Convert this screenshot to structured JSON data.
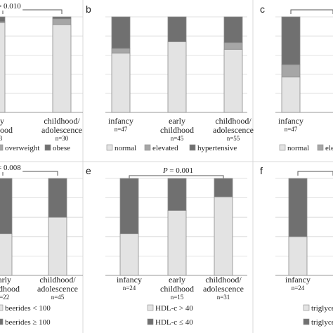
{
  "colors": {
    "light": "#e3e3e3",
    "mid": "#a6a6a6",
    "dark": "#707070",
    "grid": "#d8d8d8",
    "axis": "#999999",
    "bar_stroke": "#8a8a8a",
    "text": "#222222"
  },
  "chart_data": [
    {
      "type": "bar",
      "panel": "a",
      "stacked": true,
      "panel_letter": "",
      "p_value": "= 0.010",
      "categories": [
        {
          "line1": "early",
          "line2": "childhood",
          "n": "n=33"
        },
        {
          "line1": "childhood/",
          "line2": "adolescence",
          "n": "n=30"
        }
      ],
      "series": [
        {
          "name": "",
          "color": "light",
          "values": [
            94,
            92
          ]
        },
        {
          "name": "overweight",
          "color": "mid",
          "values": [
            1,
            6
          ]
        },
        {
          "name": "obese",
          "color": "dark",
          "values": [
            5,
            2
          ]
        }
      ],
      "legend": [
        {
          "name": "overweight",
          "color": "mid"
        },
        {
          "name": "obese",
          "color": "dark"
        }
      ],
      "ylim": [
        0,
        100
      ],
      "grid": true
    },
    {
      "type": "bar",
      "panel": "b",
      "stacked": true,
      "panel_letter": "b",
      "p_value": "",
      "categories": [
        {
          "line1": "infancy",
          "line2": "",
          "n": "n=47"
        },
        {
          "line1": "early",
          "line2": "childhood",
          "n": "n=45"
        },
        {
          "line1": "childhood/",
          "line2": "adolescence",
          "n": "n=55"
        }
      ],
      "series": [
        {
          "name": "normal",
          "color": "light",
          "values": [
            62,
            74,
            66
          ]
        },
        {
          "name": "elevated",
          "color": "mid",
          "values": [
            5,
            0,
            7
          ]
        },
        {
          "name": "hypertensive",
          "color": "dark",
          "values": [
            33,
            26,
            27
          ]
        }
      ],
      "legend": [
        {
          "name": "normal",
          "color": "light"
        },
        {
          "name": "elevated",
          "color": "mid"
        },
        {
          "name": "hypertensive",
          "color": "dark"
        }
      ],
      "ylim": [
        0,
        100
      ],
      "grid": true
    },
    {
      "type": "bar",
      "panel": "c",
      "stacked": true,
      "panel_letter": "c",
      "p_value": "",
      "categories": [
        {
          "line1": "infancy",
          "line2": "",
          "n": "n=47"
        },
        {
          "line1": "c",
          "line2": "",
          "n": ""
        }
      ],
      "series": [
        {
          "name": "normal",
          "color": "light",
          "values": [
            37,
            0
          ]
        },
        {
          "name": "elevated",
          "color": "mid",
          "values": [
            13,
            0
          ]
        },
        {
          "name": "",
          "color": "dark",
          "values": [
            50,
            0
          ]
        }
      ],
      "legend": [
        {
          "name": "normal",
          "color": "light"
        },
        {
          "name": "eleva",
          "color": "mid"
        }
      ],
      "ylim": [
        0,
        100
      ],
      "grid": true
    },
    {
      "type": "bar",
      "panel": "d",
      "stacked": true,
      "panel_letter": "",
      "p_value": "= 0.008",
      "categories": [
        {
          "line1": "early",
          "line2": "childhood",
          "n": "n=22"
        },
        {
          "line1": "childhood/",
          "line2": "adolescence",
          "n": "n=45"
        }
      ],
      "series": [
        {
          "name": "beerides < 100",
          "color": "light",
          "values": [
            43,
            60
          ]
        },
        {
          "name": "beerides ≥ 100",
          "color": "dark",
          "values": [
            57,
            40
          ]
        }
      ],
      "legend": [
        {
          "name": "beerides < 100",
          "color": "light"
        },
        {
          "name": "beerides ≥ 100",
          "color": "dark"
        }
      ],
      "ylim": [
        0,
        100
      ],
      "grid": true
    },
    {
      "type": "bar",
      "panel": "e",
      "stacked": true,
      "panel_letter": "e",
      "p_value": "= 0.001",
      "categories": [
        {
          "line1": "infancy",
          "line2": "",
          "n": "n=24"
        },
        {
          "line1": "early",
          "line2": "childhood",
          "n": "n=15"
        },
        {
          "line1": "childhood/",
          "line2": "adolescence",
          "n": "n=31"
        }
      ],
      "series": [
        {
          "name": "HDL-c > 40",
          "color": "light",
          "values": [
            43,
            67,
            81
          ]
        },
        {
          "name": "HDL-c ≤ 40",
          "color": "dark",
          "values": [
            57,
            33,
            19
          ]
        }
      ],
      "legend": [
        {
          "name": "HDL-c > 40",
          "color": "light"
        },
        {
          "name": "HDL-c ≤ 40",
          "color": "dark"
        }
      ],
      "ylim": [
        0,
        100
      ],
      "grid": true
    },
    {
      "type": "bar",
      "panel": "f",
      "stacked": true,
      "panel_letter": "f",
      "p_value": "",
      "categories": [
        {
          "line1": "infancy",
          "line2": "",
          "n": "n=24"
        },
        {
          "line1": "c",
          "line2": "",
          "n": ""
        }
      ],
      "series": [
        {
          "name": "triglyce",
          "color": "light",
          "values": [
            40,
            0
          ]
        },
        {
          "name": "triglyce",
          "color": "dark",
          "values": [
            60,
            0
          ]
        }
      ],
      "legend": [
        {
          "name": "triglyce",
          "color": "light"
        },
        {
          "name": "triglyce",
          "color": "dark"
        }
      ],
      "ylim": [
        0,
        100
      ],
      "grid": true
    }
  ]
}
